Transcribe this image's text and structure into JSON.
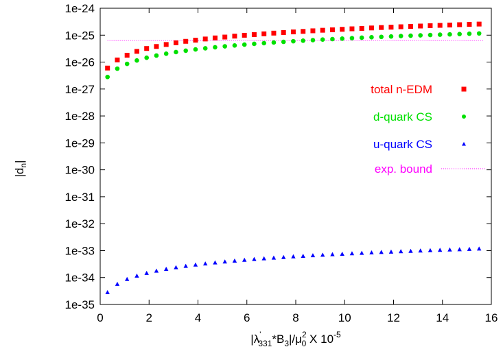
{
  "chart_data": {
    "type": "scatter",
    "title": "",
    "xlabel": {
      "bar": "|",
      "lambda": "λ",
      "prime": "'",
      "lambda_sub": "331",
      "mid": "*B",
      "b_sub": "3",
      "slash": "|/μ",
      "mu_sup": "2",
      "mu_sub": "0",
      "tail": " X 10",
      "exp": "-5"
    },
    "ylabel": {
      "main": "|d",
      "sub": "n",
      "end": "|"
    },
    "xlim": [
      0,
      16
    ],
    "ylim_log10": [
      -35,
      -24
    ],
    "y_scale": "log",
    "x_ticks": [
      "0",
      "2",
      "4",
      "6",
      "8",
      "10",
      "12",
      "14",
      "16"
    ],
    "y_ticks": [
      "1e-35",
      "1e-34",
      "1e-33",
      "1e-32",
      "1e-31",
      "1e-30",
      "1e-29",
      "1e-28",
      "1e-27",
      "1e-26",
      "1e-25",
      "1e-24"
    ],
    "legend_position": "right",
    "x": [
      0.3,
      0.7,
      1.1,
      1.5,
      1.9,
      2.3,
      2.7,
      3.1,
      3.5,
      3.9,
      4.3,
      4.7,
      5.1,
      5.5,
      5.9,
      6.3,
      6.7,
      7.1,
      7.5,
      7.9,
      8.3,
      8.7,
      9.1,
      9.5,
      9.9,
      10.3,
      10.7,
      11.1,
      11.5,
      11.9,
      12.3,
      12.7,
      13.1,
      13.5,
      13.9,
      14.3,
      14.7,
      15.1,
      15.5
    ],
    "series": [
      {
        "name": "total n-EDM",
        "marker": "square",
        "color": "#ff0000",
        "values": [
          6e-27,
          1.2e-26,
          1.8e-26,
          2.5e-26,
          3.2e-26,
          3.8e-26,
          4.5e-26,
          5.2e-26,
          5.9e-26,
          6.5e-26,
          7.2e-26,
          7.9e-26,
          8.5e-26,
          9.2e-26,
          9.9e-26,
          1.05e-25,
          1.12e-25,
          1.19e-25,
          1.25e-25,
          1.32e-25,
          1.38e-25,
          1.45e-25,
          1.52e-25,
          1.58e-25,
          1.65e-25,
          1.72e-25,
          1.78e-25,
          1.85e-25,
          1.92e-25,
          1.98e-25,
          2.05e-25,
          2.11e-25,
          2.18e-25,
          2.25e-25,
          2.31e-25,
          2.38e-25,
          2.45e-25,
          2.51e-25,
          2.58e-25
        ]
      },
      {
        "name": "d-quark CS",
        "marker": "circle",
        "color": "#00e000",
        "values": [
          2.8e-27,
          5.7e-27,
          8.6e-27,
          1.15e-26,
          1.45e-26,
          1.75e-26,
          2.05e-26,
          2.35e-26,
          2.65e-26,
          2.95e-26,
          3.25e-26,
          3.55e-26,
          3.85e-26,
          4.15e-26,
          4.45e-26,
          4.75e-26,
          5.05e-26,
          5.35e-26,
          5.65e-26,
          5.95e-26,
          6.25e-26,
          6.55e-26,
          6.85e-26,
          7.15e-26,
          7.45e-26,
          7.75e-26,
          8.05e-26,
          8.35e-26,
          8.65e-26,
          8.95e-26,
          9.25e-26,
          9.55e-26,
          9.85e-26,
          1.01e-25,
          1.04e-25,
          1.07e-25,
          1.1e-25,
          1.13e-25,
          1.16e-25
        ]
      },
      {
        "name": "u-quark CS",
        "marker": "triangle",
        "color": "#0000ff",
        "values": [
          2.8e-35,
          5.7e-35,
          8.6e-35,
          1.15e-34,
          1.45e-34,
          1.75e-34,
          2.05e-34,
          2.35e-34,
          2.65e-34,
          2.95e-34,
          3.25e-34,
          3.55e-34,
          3.85e-34,
          4.15e-34,
          4.45e-34,
          4.75e-34,
          5.05e-34,
          5.35e-34,
          5.65e-34,
          5.95e-34,
          6.25e-34,
          6.55e-34,
          6.85e-34,
          7.15e-34,
          7.45e-34,
          7.75e-34,
          8.05e-34,
          8.35e-34,
          8.65e-34,
          8.95e-34,
          9.25e-34,
          9.55e-34,
          9.85e-34,
          1.01e-33,
          1.04e-33,
          1.07e-33,
          1.1e-33,
          1.13e-33,
          1.16e-33
        ]
      },
      {
        "name": "exp. bound",
        "marker": "dotted-line",
        "color": "#ff00ff",
        "x_range": [
          0.3,
          15.7
        ],
        "value": 6.3e-26
      }
    ]
  }
}
